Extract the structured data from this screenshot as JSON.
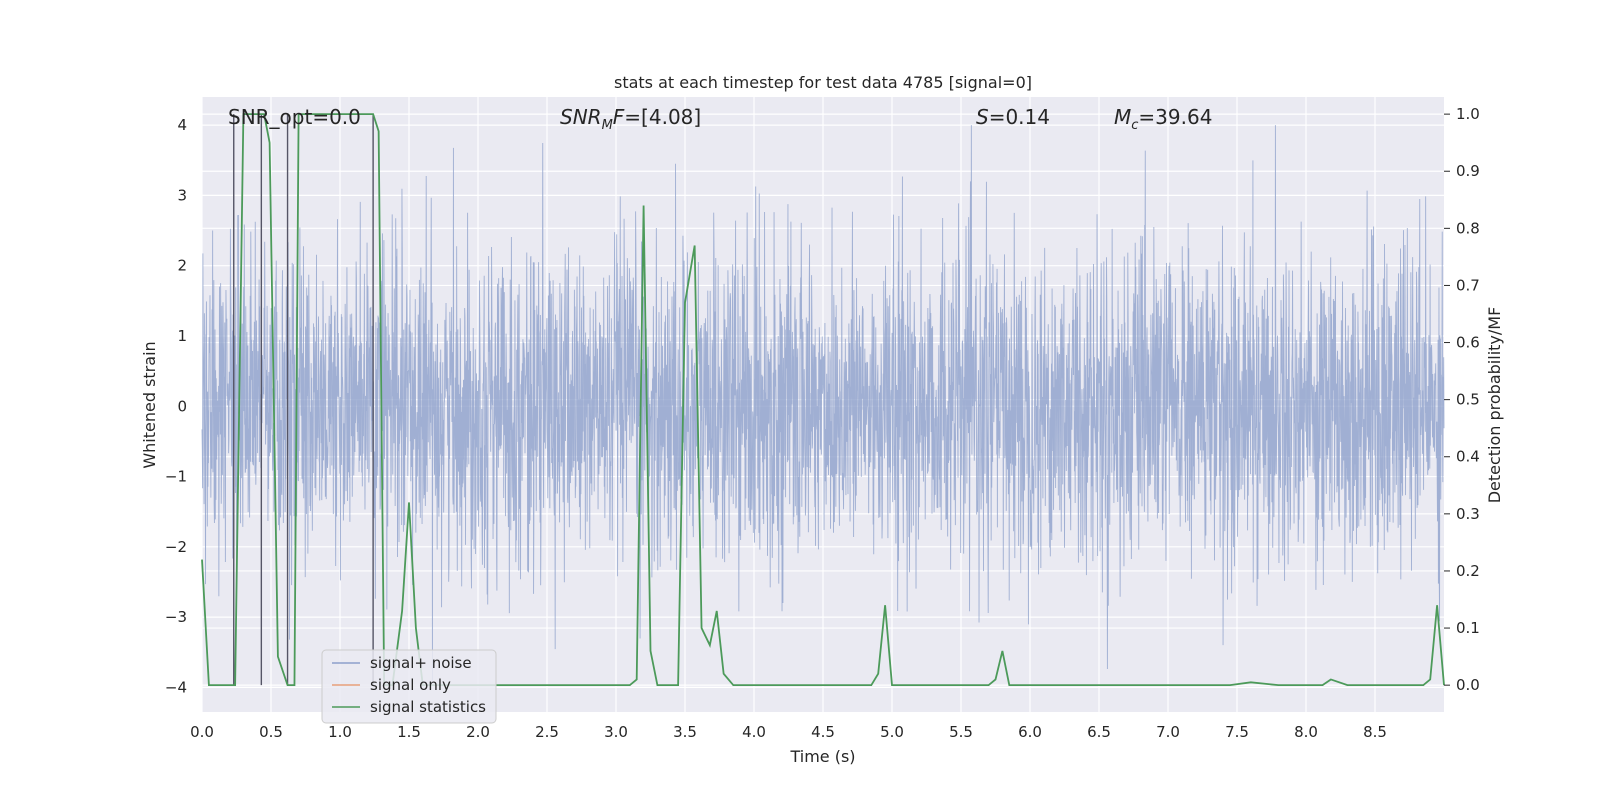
{
  "chart_data": {
    "type": "line",
    "title": "stats at each timestep for test data 4785 [signal=0]",
    "xlabel": "Time (s)",
    "ylabel_left": "Whitened strain",
    "ylabel_right": "Detection probability/MF",
    "xlim": [
      0.0,
      9.0
    ],
    "ylim_left": [
      -4.35,
      4.4
    ],
    "ylim_right": [
      -0.047,
      1.03
    ],
    "x_ticks": [
      "0.0",
      "0.5",
      "1.0",
      "1.5",
      "2.0",
      "2.5",
      "3.0",
      "3.5",
      "4.0",
      "4.5",
      "5.0",
      "5.5",
      "6.0",
      "6.5",
      "7.0",
      "7.5",
      "8.0",
      "8.5"
    ],
    "y_ticks_left": [
      "4",
      "3",
      "2",
      "1",
      "0",
      "−1",
      "−2",
      "−3",
      "−4"
    ],
    "y_ticks_right": [
      "1.0",
      "0.9",
      "0.8",
      "0.7",
      "0.6",
      "0.5",
      "0.4",
      "0.3",
      "0.2",
      "0.1",
      "0.0"
    ],
    "grid": true,
    "legend_position": "lower-left",
    "annotations": {
      "snr_opt": "SNR_opt=0.0",
      "snr_mf": "=[4.08]",
      "s_value": "=0.14",
      "mc_value": "=39.64"
    },
    "series": [
      {
        "name": "signal+ noise",
        "color": "#8da0cb",
        "axis": "left",
        "description_amplitude": {
          "typical_envelope": 2.0,
          "peak": 4.0,
          "trough": -3.9
        }
      },
      {
        "name": "signal only",
        "color": "#e8a07b",
        "axis": "left",
        "values": []
      },
      {
        "name": "signal statistics",
        "color": "#4c9a5a",
        "axis": "right",
        "x": [
          0.0,
          0.05,
          0.1,
          0.2,
          0.24,
          0.3,
          0.35,
          0.42,
          0.45,
          0.49,
          0.55,
          0.62,
          0.67,
          0.7,
          0.73,
          0.8,
          0.9,
          1.0,
          1.1,
          1.2,
          1.24,
          1.28,
          1.32,
          1.38,
          1.45,
          1.5,
          1.55,
          1.6,
          1.7,
          1.8,
          2.0,
          2.2,
          2.4,
          2.6,
          2.8,
          3.0,
          3.1,
          3.15,
          3.2,
          3.25,
          3.3,
          3.35,
          3.45,
          3.5,
          3.57,
          3.62,
          3.68,
          3.73,
          3.78,
          3.85,
          4.0,
          4.2,
          4.4,
          4.6,
          4.8,
          4.85,
          4.9,
          4.95,
          5.0,
          5.1,
          5.3,
          5.5,
          5.6,
          5.7,
          5.75,
          5.8,
          5.85,
          6.0,
          6.5,
          7.0,
          7.3,
          7.45,
          7.6,
          7.8,
          8.0,
          8.05,
          8.12,
          8.18,
          8.3,
          8.6,
          8.78,
          8.85,
          8.9,
          8.95,
          9.0
        ],
        "values": [
          0.22,
          0.0,
          0.0,
          0.0,
          0.0,
          1.0,
          1.0,
          1.0,
          1.0,
          0.95,
          0.05,
          0.0,
          0.0,
          1.0,
          1.0,
          1.0,
          1.0,
          1.0,
          1.0,
          1.0,
          1.0,
          0.97,
          0.0,
          0.0,
          0.13,
          0.32,
          0.1,
          0.0,
          0.0,
          0.0,
          0.0,
          0.0,
          0.0,
          0.0,
          0.0,
          0.0,
          0.0,
          0.01,
          0.84,
          0.06,
          0.0,
          0.0,
          0.0,
          0.67,
          0.77,
          0.1,
          0.07,
          0.13,
          0.02,
          0.0,
          0.0,
          0.0,
          0.0,
          0.0,
          0.0,
          0.0,
          0.02,
          0.14,
          0.0,
          0.0,
          0.0,
          0.0,
          0.0,
          0.0,
          0.01,
          0.06,
          0.0,
          0.0,
          0.0,
          0.0,
          0.0,
          0.0,
          0.005,
          0.0,
          0.0,
          0.0,
          0.0,
          0.01,
          0.0,
          0.0,
          0.0,
          0.0,
          0.01,
          0.14,
          0.0
        ]
      }
    ],
    "vertical_markers_x": [
      0.23,
      0.43,
      0.62,
      1.24
    ]
  }
}
